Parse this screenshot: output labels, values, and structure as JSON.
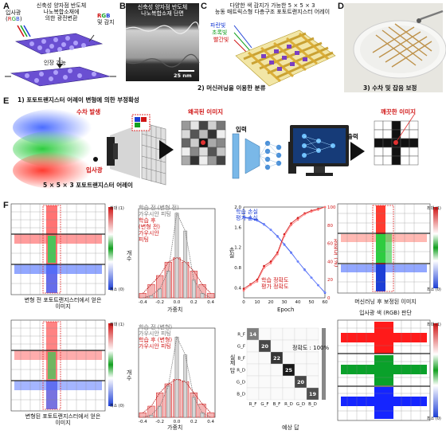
{
  "panel_letters": [
    "A",
    "B",
    "C",
    "D",
    "E",
    "F"
  ],
  "panelA": {
    "title_line1": "신축성 양자점 반도체",
    "title_line2": "나노복합소재에",
    "title_line3": "의한 광전변환",
    "left_label_line1": "입사광",
    "left_label_R": "R",
    "left_label_G": "G",
    "left_label_B": "B",
    "right_label_line1": "RGB",
    "right_label_line2": "및 감지",
    "bottom_label": "인장 가능"
  },
  "panelB": {
    "title_line1": "신축성 양자점 반도체",
    "title_line2": "나노복합소재 단면",
    "scale": "25 nm"
  },
  "panelC": {
    "title_line1": "다양한 색 감지가 가능한 5 × 5 × 3",
    "title_line2": "능동 매트릭스형 다층구조 포토트랜지스터 어레이",
    "layer_blue": "파란빛",
    "layer_green": "초록빛",
    "layer_red": "빨간빛"
  },
  "panelD": {},
  "panelE": {
    "title": "1) 포토트랜지스터 어레이 변형에 의한 부정확성",
    "aberration": "수차 발생",
    "incident": "입사광",
    "array_label": "5 × 5 × 3 포토트랜지스터 어레이",
    "distorted": "왜곡된 이미지",
    "input": "입력",
    "output": "출력",
    "clear": "깨끗한 이미지",
    "step2": "2) 머신러닝을 이용한 분류",
    "step3": "3) 수차 및 잡음 보정"
  },
  "panelF": {
    "img1_caption_line1": "변형 전 포토트랜지스터에서 얻은",
    "img1_caption_line2": "이미지",
    "img2_caption_line1": "변형된 포토트랜지스터에서 얻은",
    "img2_caption_line2": "이미지",
    "img3_caption": "머신러닝 후 보정된 이미지",
    "img4_title": "입사광 색 (RGB) 판단",
    "colorbar_top": "최대 (1)",
    "colorbar_bottom": "최소 (0)",
    "hist1": {
      "legend": [
        "학습 전 (변형 전)",
        "가우시안 피팅",
        "학습 후",
        "(변형 전)",
        "가우시안",
        "피팅"
      ],
      "xlabel": "가중치",
      "ylabel": "개수",
      "xticks": [
        "-0.4",
        "-0.2",
        "0.0",
        "0.2",
        "0.4"
      ]
    },
    "hist2": {
      "legend": [
        "학습 전 (변형)",
        "가우시안 피팅",
        "학습 후 (변형)",
        "가우시안 피팅"
      ],
      "xlabel": "가중치",
      "ylabel": "개수",
      "xticks": [
        "-0.4",
        "-0.2",
        "0.0",
        "0.2",
        "0.4"
      ]
    },
    "loss": {
      "legend": [
        "학습 손실",
        "평가 손실",
        "학습 정확도",
        "평가 정확도"
      ],
      "xlabel": "Epoch",
      "ylabel_left": "손실",
      "ylabel_right": "정확도 (%)",
      "xticks": [
        "0",
        "10",
        "20",
        "30",
        "40",
        "50",
        "60"
      ],
      "yticks_left": [
        "0.4",
        "0.8",
        "1.2",
        "1.6",
        "2.0"
      ],
      "yticks_right": [
        "0",
        "20",
        "40",
        "60",
        "80",
        "100"
      ]
    },
    "confusion": {
      "labels": [
        "R_F",
        "G_F",
        "B_F",
        "R_D",
        "G_D",
        "B_D"
      ],
      "diag": [
        "14",
        "20",
        "22",
        "25",
        "20",
        "19"
      ],
      "accuracy": "정확도 : 100%",
      "xlabel": "예상 답",
      "ylabel": "실제 답"
    }
  },
  "chart_data": [
    {
      "type": "line",
      "title": "",
      "xlabel": "Epoch",
      "ylabel": "손실",
      "xlim": [
        0,
        60
      ],
      "ylim": [
        0.2,
        2.0
      ],
      "series": [
        {
          "name": "학습 손실",
          "x": [
            0,
            5,
            10,
            15,
            20,
            25,
            30,
            35,
            40,
            45,
            50,
            55,
            60
          ],
          "values": [
            1.8,
            1.78,
            1.74,
            1.66,
            1.55,
            1.42,
            1.26,
            1.1,
            0.92,
            0.76,
            0.6,
            0.45,
            0.3
          ]
        },
        {
          "name": "평가 손실",
          "x": [
            0,
            5,
            10,
            15,
            20,
            25,
            30,
            35,
            40,
            45,
            50,
            55,
            60
          ],
          "values": [
            1.79,
            1.77,
            1.73,
            1.65,
            1.55,
            1.41,
            1.25,
            1.09,
            0.92,
            0.75,
            0.6,
            0.45,
            0.31
          ]
        },
        {
          "name": "학습 정확도",
          "axis": "right",
          "x": [
            0,
            5,
            10,
            15,
            20,
            25,
            30,
            35,
            40,
            45,
            50,
            55,
            60
          ],
          "values": [
            10,
            15,
            20,
            35,
            40,
            50,
            70,
            82,
            88,
            93,
            96,
            98,
            100
          ]
        },
        {
          "name": "평가 정확도",
          "axis": "right",
          "x": [
            0,
            5,
            10,
            15,
            20,
            25,
            30,
            35,
            40,
            45,
            50,
            55,
            60
          ],
          "values": [
            8,
            14,
            18,
            33,
            38,
            48,
            68,
            80,
            86,
            92,
            95,
            97,
            100
          ]
        }
      ]
    },
    {
      "type": "heatmap",
      "title": "정확도 : 100%",
      "categories": [
        "R_F",
        "G_F",
        "B_F",
        "R_D",
        "G_D",
        "B_D"
      ],
      "xlabel": "예상 답",
      "ylabel": "실제 답",
      "diagonal": [
        14,
        20,
        22,
        25,
        20,
        19
      ]
    },
    {
      "type": "bar",
      "xlabel": "가중치",
      "ylabel": "개수",
      "categories": [
        "-0.4",
        "-0.3",
        "-0.2",
        "-0.1",
        "0.0",
        "0.1",
        "0.2",
        "0.3",
        "0.4"
      ],
      "series": [
        {
          "name": "학습 전 (변형 전)",
          "values": [
            0,
            1,
            4,
            12,
            38,
            30,
            8,
            2,
            0
          ]
        },
        {
          "name": "학습 후",
          "values": [
            2,
            6,
            10,
            16,
            18,
            16,
            12,
            6,
            2
          ]
        }
      ]
    },
    {
      "type": "bar",
      "xlabel": "가중치",
      "ylabel": "개수",
      "categories": [
        "-0.4",
        "-0.3",
        "-0.2",
        "-0.1",
        "0.0",
        "0.1",
        "0.2",
        "0.3",
        "0.4"
      ],
      "series": [
        {
          "name": "학습 전 (변형)",
          "values": [
            0,
            1,
            5,
            14,
            36,
            28,
            9,
            2,
            0
          ]
        },
        {
          "name": "학습 후 (변형)",
          "values": [
            2,
            5,
            11,
            15,
            17,
            16,
            11,
            6,
            2
          ]
        }
      ]
    }
  ]
}
